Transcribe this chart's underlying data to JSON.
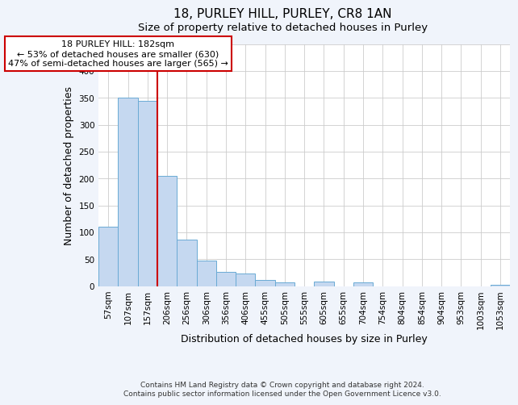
{
  "title": "18, PURLEY HILL, PURLEY, CR8 1AN",
  "subtitle": "Size of property relative to detached houses in Purley",
  "xlabel": "Distribution of detached houses by size in Purley",
  "ylabel": "Number of detached properties",
  "bar_labels": [
    "57sqm",
    "107sqm",
    "157sqm",
    "206sqm",
    "256sqm",
    "306sqm",
    "356sqm",
    "406sqm",
    "455sqm",
    "505sqm",
    "555sqm",
    "605sqm",
    "655sqm",
    "704sqm",
    "754sqm",
    "804sqm",
    "854sqm",
    "904sqm",
    "953sqm",
    "1003sqm",
    "1053sqm"
  ],
  "bar_values": [
    110,
    350,
    345,
    205,
    86,
    47,
    26,
    23,
    12,
    7,
    0,
    8,
    0,
    7,
    0,
    0,
    0,
    0,
    0,
    0,
    3
  ],
  "bar_color": "#c5d8f0",
  "bar_edgecolor": "#6aaad4",
  "vline_color": "#cc0000",
  "annotation_box_color": "#cc0000",
  "annotation_line1": "18 PURLEY HILL: 182sqm",
  "annotation_line2": "← 53% of detached houses are smaller (630)",
  "annotation_line3": "47% of semi-detached houses are larger (565) →",
  "ylim": [
    0,
    450
  ],
  "yticks": [
    0,
    50,
    100,
    150,
    200,
    250,
    300,
    350,
    400,
    450
  ],
  "plot_bg_color": "#ffffff",
  "fig_bg_color": "#f0f4fb",
  "footer_line1": "Contains HM Land Registry data © Crown copyright and database right 2024.",
  "footer_line2": "Contains public sector information licensed under the Open Government Licence v3.0.",
  "title_fontsize": 11,
  "subtitle_fontsize": 9.5,
  "xlabel_fontsize": 9,
  "ylabel_fontsize": 9,
  "tick_fontsize": 7.5,
  "footer_fontsize": 6.5,
  "vline_index": 2
}
